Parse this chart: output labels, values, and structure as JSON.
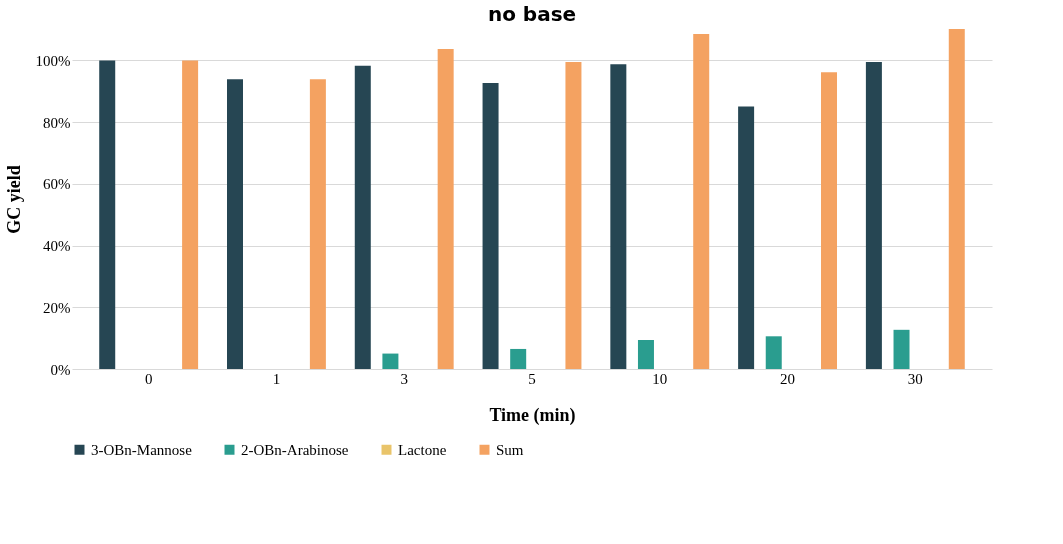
{
  "chart_data": {
    "type": "bar",
    "title": "no base",
    "xlabel": "Time (min)",
    "ylabel": "GC yield",
    "categories": [
      "0",
      "1",
      "3",
      "5",
      "10",
      "20",
      "30"
    ],
    "series": [
      {
        "name": "3-OBn-Mannose",
        "color": "#264653",
        "values": [
          100,
          93.9,
          98.3,
          92.7,
          98.8,
          85.1,
          99.5
        ]
      },
      {
        "name": "2-OBn-Arabinose",
        "color": "#2a9d8f",
        "values": [
          0,
          0,
          5.0,
          6.5,
          9.4,
          10.6,
          12.7
        ]
      },
      {
        "name": "Lactone",
        "color": "#e9c46a",
        "values": [
          0,
          0,
          0,
          0,
          0,
          0,
          0
        ]
      },
      {
        "name": "Sum",
        "color": "#f4a261",
        "values": [
          100,
          93.9,
          103.7,
          99.5,
          108.6,
          96.2,
          110.2
        ]
      }
    ],
    "yticks": [
      {
        "value": 0,
        "label": "0%"
      },
      {
        "value": 20,
        "label": "20%"
      },
      {
        "value": 40,
        "label": "40%"
      },
      {
        "value": 60,
        "label": "60%"
      },
      {
        "value": 80,
        "label": "80%"
      },
      {
        "value": 100,
        "label": "100%"
      }
    ],
    "ylim": [
      0,
      110.2
    ],
    "grid": "y",
    "legend": "bottom"
  }
}
